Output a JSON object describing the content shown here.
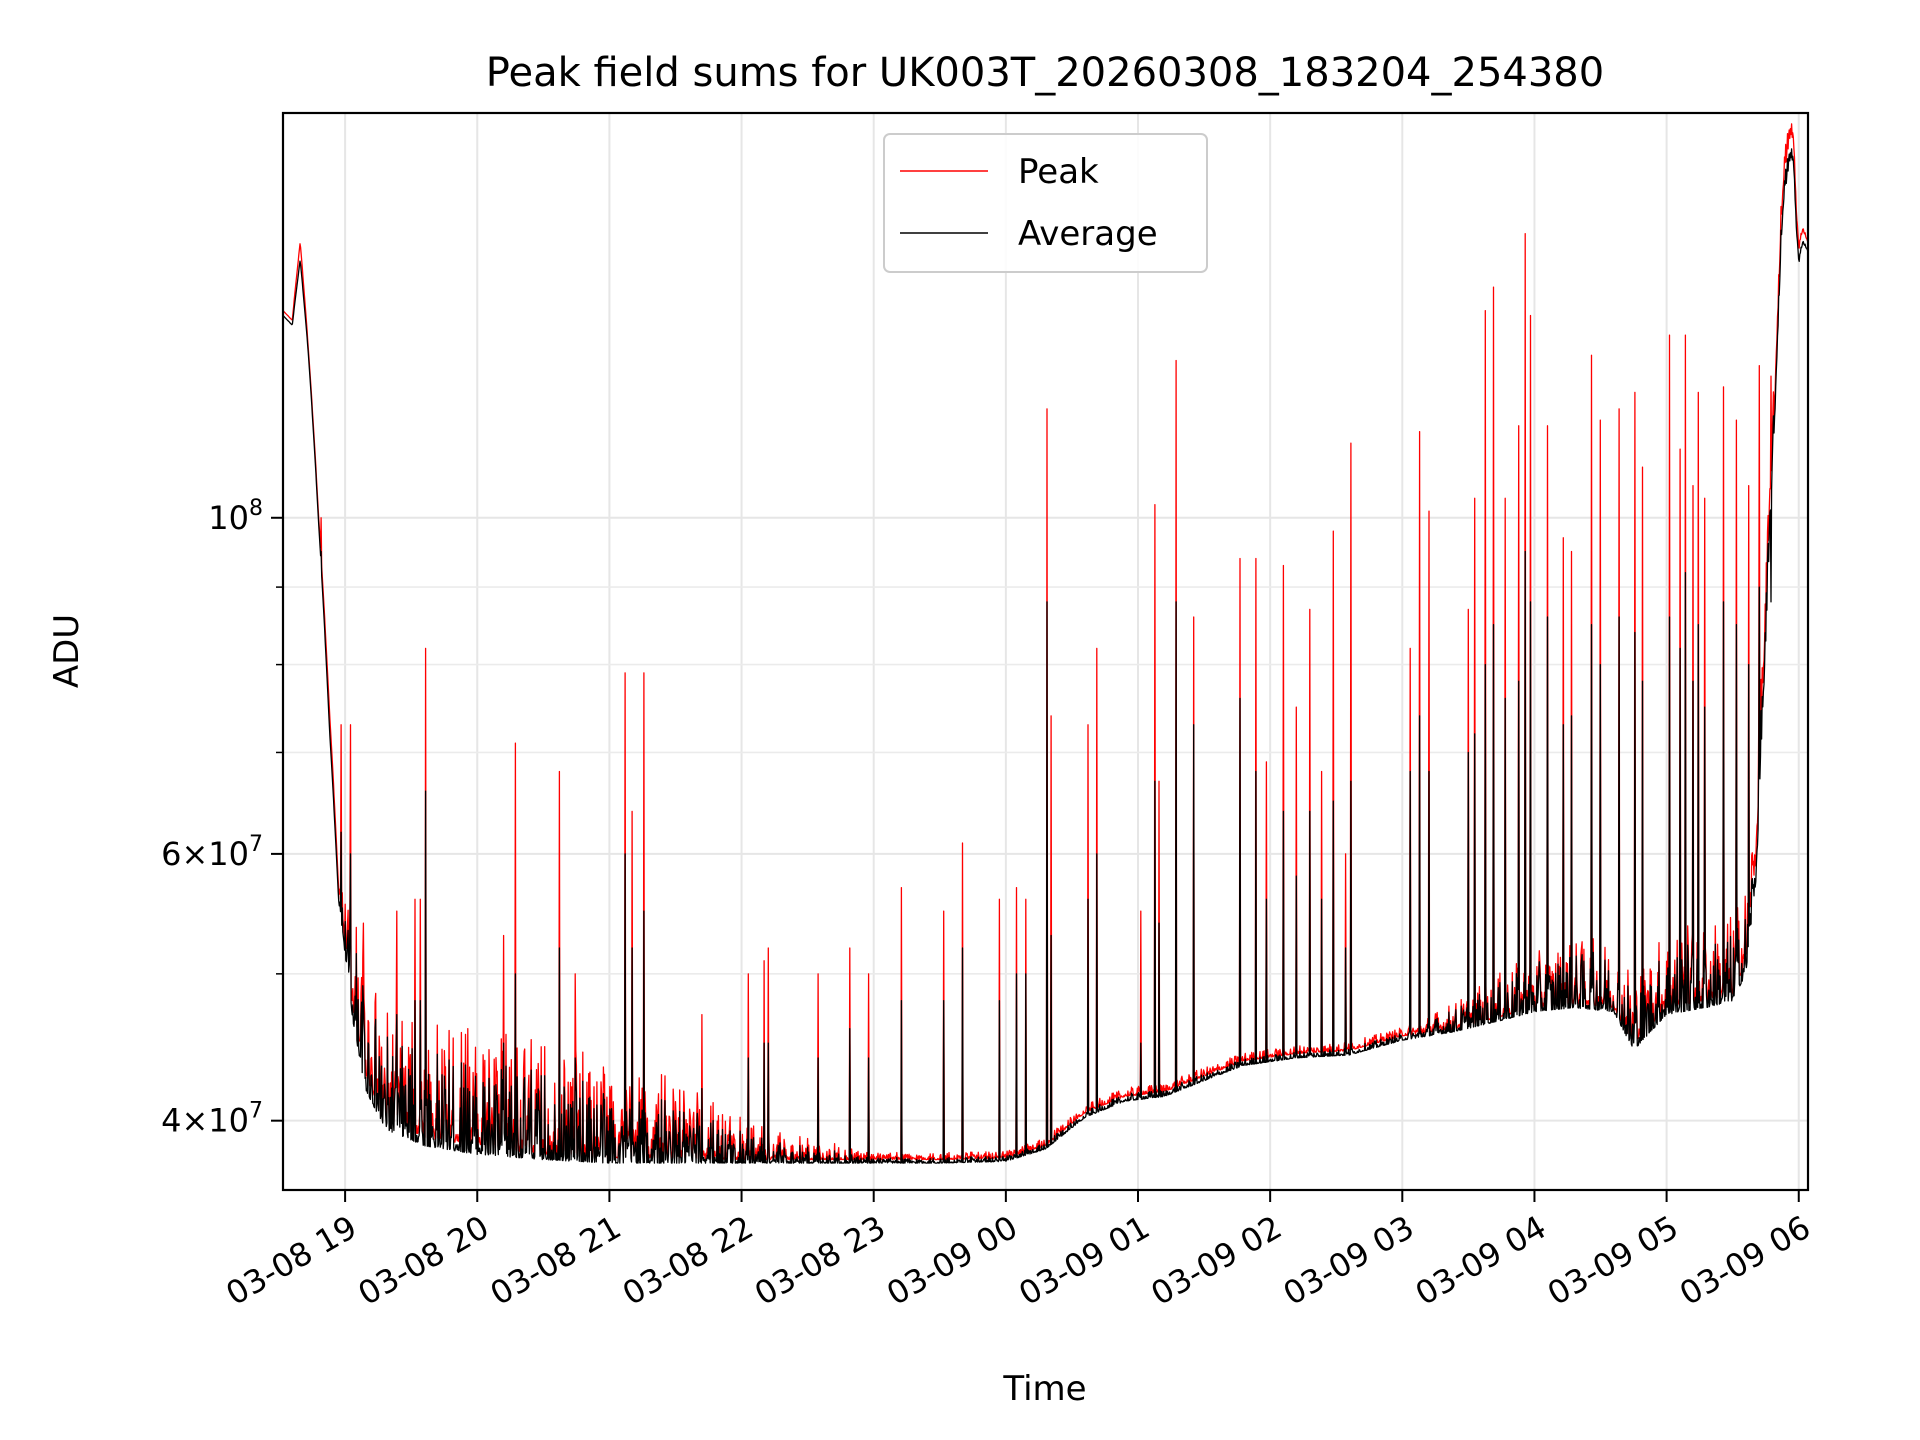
{
  "chart_data": {
    "type": "line",
    "title": "Peak field sums for UK003T_20260308_183204_254380",
    "xlabel": "Time",
    "ylabel": "ADU",
    "yscale": "log",
    "ylim": [
      36000000,
      185000000
    ],
    "xlim_hours": [
      18.53,
      30.07
    ],
    "grid": true,
    "legend_position": "top-center",
    "x_ticks": [
      {
        "hour": 19,
        "label": "03-08 19"
      },
      {
        "hour": 20,
        "label": "03-08 20"
      },
      {
        "hour": 21,
        "label": "03-08 21"
      },
      {
        "hour": 22,
        "label": "03-08 22"
      },
      {
        "hour": 23,
        "label": "03-08 23"
      },
      {
        "hour": 24,
        "label": "03-09 00"
      },
      {
        "hour": 25,
        "label": "03-09 01"
      },
      {
        "hour": 26,
        "label": "03-09 02"
      },
      {
        "hour": 27,
        "label": "03-09 03"
      },
      {
        "hour": 28,
        "label": "03-09 04"
      },
      {
        "hour": 29,
        "label": "03-09 05"
      },
      {
        "hour": 30,
        "label": "03-09 06"
      }
    ],
    "y_major_ticks": [
      {
        "value": 40000000,
        "mant": "4",
        "exp": "7"
      },
      {
        "value": 60000000,
        "mant": "6",
        "exp": "7"
      },
      {
        "value": 100000000,
        "mant": "",
        "exp": "8"
      }
    ],
    "y_minor_ticks": [
      50000000,
      70000000,
      80000000,
      90000000
    ],
    "series": [
      {
        "name": "Peak",
        "color": "#ff0000",
        "baseline": [
          [
            18.53,
            137
          ],
          [
            18.6,
            135
          ],
          [
            18.66,
            152
          ],
          [
            18.72,
            130
          ],
          [
            18.8,
            100
          ],
          [
            18.88,
            75
          ],
          [
            18.95,
            57
          ],
          [
            19.05,
            48
          ],
          [
            19.15,
            43
          ],
          [
            19.3,
            40
          ],
          [
            19.6,
            39
          ],
          [
            20.0,
            38.5
          ],
          [
            20.5,
            38
          ],
          [
            21.0,
            37.8
          ],
          [
            21.5,
            37.8
          ],
          [
            22.0,
            37.7
          ],
          [
            22.5,
            37.7
          ],
          [
            23.0,
            37.7
          ],
          [
            23.5,
            37.7
          ],
          [
            24.0,
            37.8
          ],
          [
            24.3,
            38.5
          ],
          [
            24.6,
            40.5
          ],
          [
            24.9,
            41.5
          ],
          [
            25.2,
            41.8
          ],
          [
            25.5,
            42.8
          ],
          [
            25.8,
            43.8
          ],
          [
            26.2,
            44.3
          ],
          [
            26.6,
            44.5
          ],
          [
            27.0,
            45.5
          ],
          [
            27.4,
            46
          ],
          [
            27.8,
            47
          ],
          [
            28.0,
            47.5
          ],
          [
            28.3,
            47.8
          ],
          [
            28.6,
            47.5
          ],
          [
            28.75,
            45
          ],
          [
            29.0,
            47.5
          ],
          [
            29.3,
            48
          ],
          [
            29.5,
            48.5
          ],
          [
            29.6,
            51
          ],
          [
            29.68,
            60
          ],
          [
            29.75,
            85
          ],
          [
            29.82,
            120
          ],
          [
            29.88,
            165
          ],
          [
            29.93,
            178
          ],
          [
            29.96,
            178
          ],
          [
            29.98,
            160
          ],
          [
            30.0,
            150
          ],
          [
            30.03,
            155
          ],
          [
            30.07,
            152
          ]
        ],
        "noise": [
          [
            18.53,
            0.0
          ],
          [
            18.95,
            0.0
          ],
          [
            19.05,
            0.08
          ],
          [
            20.0,
            0.09
          ],
          [
            21.0,
            0.08
          ],
          [
            22.3,
            0.02
          ],
          [
            23.0,
            0.005
          ],
          [
            23.7,
            0.005
          ],
          [
            24.0,
            0.005
          ],
          [
            25.0,
            0.006
          ],
          [
            27.0,
            0.006
          ],
          [
            28.0,
            0.04
          ],
          [
            29.0,
            0.06
          ],
          [
            29.6,
            0.06
          ],
          [
            29.8,
            0.03
          ],
          [
            30.07,
            0.0
          ]
        ],
        "spikes": [
          [
            18.82,
            100
          ],
          [
            18.97,
            73
          ],
          [
            19.04,
            73
          ],
          [
            19.14,
            54
          ],
          [
            19.39,
            55
          ],
          [
            19.53,
            56
          ],
          [
            19.57,
            56
          ],
          [
            19.61,
            82
          ],
          [
            19.93,
            46
          ],
          [
            20.2,
            53
          ],
          [
            20.29,
            71
          ],
          [
            20.62,
            68
          ],
          [
            20.74,
            50
          ],
          [
            21.12,
            79
          ],
          [
            21.17,
            64
          ],
          [
            21.26,
            79
          ],
          [
            21.7,
            47
          ],
          [
            22.05,
            50
          ],
          [
            22.17,
            51
          ],
          [
            22.2,
            52
          ],
          [
            22.58,
            50
          ],
          [
            22.82,
            52
          ],
          [
            22.96,
            50
          ],
          [
            23.21,
            57
          ],
          [
            23.53,
            55
          ],
          [
            23.67,
            61
          ],
          [
            23.95,
            56
          ],
          [
            24.08,
            57
          ],
          [
            24.15,
            56
          ],
          [
            24.31,
            118
          ],
          [
            24.34,
            74
          ],
          [
            24.62,
            73
          ],
          [
            24.69,
            82
          ],
          [
            25.02,
            55
          ],
          [
            25.13,
            102
          ],
          [
            25.16,
            67
          ],
          [
            25.29,
            127
          ],
          [
            25.42,
            86
          ],
          [
            25.77,
            94
          ],
          [
            25.89,
            94
          ],
          [
            25.97,
            69
          ],
          [
            26.1,
            93
          ],
          [
            26.2,
            75
          ],
          [
            26.3,
            87
          ],
          [
            26.39,
            68
          ],
          [
            26.48,
            98
          ],
          [
            26.57,
            60
          ],
          [
            26.61,
            112
          ],
          [
            27.06,
            82
          ],
          [
            27.13,
            114
          ],
          [
            27.2,
            101
          ],
          [
            27.5,
            87
          ],
          [
            27.55,
            103
          ],
          [
            27.63,
            137
          ],
          [
            27.69,
            142
          ],
          [
            27.78,
            103
          ],
          [
            27.88,
            115
          ],
          [
            27.93,
            154
          ],
          [
            27.97,
            136
          ],
          [
            28.1,
            115
          ],
          [
            28.22,
            97
          ],
          [
            28.28,
            95
          ],
          [
            28.43,
            128
          ],
          [
            28.5,
            116
          ],
          [
            28.64,
            118
          ],
          [
            28.76,
            121
          ],
          [
            28.82,
            108
          ],
          [
            29.02,
            132
          ],
          [
            29.1,
            111
          ],
          [
            29.14,
            132
          ],
          [
            29.2,
            105
          ],
          [
            29.24,
            121
          ],
          [
            29.29,
            103
          ],
          [
            29.43,
            122
          ],
          [
            29.53,
            116
          ],
          [
            29.62,
            105
          ],
          [
            29.7,
            126
          ],
          [
            29.79,
            124
          ]
        ]
      },
      {
        "name": "Average",
        "color": "#000000",
        "baseline": [
          [
            18.53,
            136
          ],
          [
            18.6,
            134
          ],
          [
            18.66,
            148
          ],
          [
            18.72,
            129
          ],
          [
            18.8,
            99
          ],
          [
            18.88,
            73
          ],
          [
            18.95,
            56
          ],
          [
            19.05,
            47
          ],
          [
            19.15,
            42
          ],
          [
            19.3,
            39.5
          ],
          [
            19.6,
            38.5
          ],
          [
            20.0,
            38
          ],
          [
            20.5,
            37.7
          ],
          [
            21.0,
            37.5
          ],
          [
            21.5,
            37.5
          ],
          [
            22.0,
            37.5
          ],
          [
            22.5,
            37.5
          ],
          [
            23.0,
            37.5
          ],
          [
            23.5,
            37.5
          ],
          [
            24.0,
            37.6
          ],
          [
            24.3,
            38.3
          ],
          [
            24.6,
            40.2
          ],
          [
            24.9,
            41.2
          ],
          [
            25.2,
            41.5
          ],
          [
            25.5,
            42.5
          ],
          [
            25.8,
            43.5
          ],
          [
            26.2,
            44
          ],
          [
            26.6,
            44.2
          ],
          [
            27.0,
            45.2
          ],
          [
            27.4,
            45.8
          ],
          [
            27.8,
            46.7
          ],
          [
            28.0,
            47.2
          ],
          [
            28.3,
            47.5
          ],
          [
            28.6,
            47.2
          ],
          [
            28.75,
            44.5
          ],
          [
            29.0,
            47
          ],
          [
            29.3,
            47.5
          ],
          [
            29.5,
            48
          ],
          [
            29.6,
            50
          ],
          [
            29.68,
            58
          ],
          [
            29.75,
            82
          ],
          [
            29.82,
            117
          ],
          [
            29.88,
            160
          ],
          [
            29.93,
            172
          ],
          [
            29.96,
            172
          ],
          [
            29.98,
            156
          ],
          [
            30.0,
            147
          ],
          [
            30.03,
            152
          ],
          [
            30.07,
            150
          ]
        ],
        "noise": [
          [
            18.53,
            0.0
          ],
          [
            18.95,
            0.0
          ],
          [
            19.05,
            0.07
          ],
          [
            20.0,
            0.07
          ],
          [
            21.0,
            0.06
          ],
          [
            22.3,
            0.015
          ],
          [
            23.0,
            0.004
          ],
          [
            23.7,
            0.004
          ],
          [
            24.0,
            0.004
          ],
          [
            25.0,
            0.005
          ],
          [
            27.0,
            0.005
          ],
          [
            28.0,
            0.035
          ],
          [
            29.0,
            0.05
          ],
          [
            29.6,
            0.05
          ],
          [
            29.8,
            0.025
          ],
          [
            30.07,
            0.0
          ]
        ],
        "spikes": [
          [
            18.82,
            95
          ],
          [
            18.97,
            62
          ],
          [
            19.04,
            60
          ],
          [
            19.14,
            48
          ],
          [
            19.39,
            47
          ],
          [
            19.53,
            48
          ],
          [
            19.57,
            48
          ],
          [
            19.61,
            66
          ],
          [
            19.93,
            42
          ],
          [
            20.2,
            45
          ],
          [
            20.29,
            50
          ],
          [
            20.62,
            52
          ],
          [
            20.74,
            44
          ],
          [
            21.12,
            60
          ],
          [
            21.17,
            52
          ],
          [
            21.26,
            55
          ],
          [
            21.7,
            42
          ],
          [
            22.05,
            44
          ],
          [
            22.17,
            45
          ],
          [
            22.2,
            45
          ],
          [
            22.58,
            44
          ],
          [
            22.82,
            46
          ],
          [
            22.96,
            44
          ],
          [
            23.21,
            48
          ],
          [
            23.53,
            48
          ],
          [
            23.67,
            52
          ],
          [
            23.95,
            48
          ],
          [
            24.08,
            50
          ],
          [
            24.15,
            50
          ],
          [
            24.31,
            88
          ],
          [
            24.34,
            53
          ],
          [
            24.62,
            56
          ],
          [
            24.69,
            60
          ],
          [
            25.02,
            45
          ],
          [
            25.13,
            67
          ],
          [
            25.16,
            54
          ],
          [
            25.29,
            88
          ],
          [
            25.42,
            73
          ],
          [
            25.77,
            76
          ],
          [
            25.89,
            68
          ],
          [
            25.97,
            56
          ],
          [
            26.1,
            64
          ],
          [
            26.2,
            58
          ],
          [
            26.3,
            64
          ],
          [
            26.39,
            56
          ],
          [
            26.48,
            65
          ],
          [
            26.57,
            52
          ],
          [
            26.61,
            67
          ],
          [
            27.06,
            68
          ],
          [
            27.13,
            74
          ],
          [
            27.2,
            68
          ],
          [
            27.5,
            70
          ],
          [
            27.55,
            72
          ],
          [
            27.63,
            80
          ],
          [
            27.69,
            85
          ],
          [
            27.78,
            76
          ],
          [
            27.88,
            78
          ],
          [
            27.93,
            95
          ],
          [
            27.97,
            88
          ],
          [
            28.1,
            86
          ],
          [
            28.22,
            73
          ],
          [
            28.28,
            74
          ],
          [
            28.43,
            85
          ],
          [
            28.5,
            80
          ],
          [
            28.64,
            86
          ],
          [
            28.76,
            84
          ],
          [
            28.82,
            78
          ],
          [
            29.02,
            86
          ],
          [
            29.1,
            82
          ],
          [
            29.14,
            92
          ],
          [
            29.2,
            78
          ],
          [
            29.24,
            85
          ],
          [
            29.29,
            75
          ],
          [
            29.43,
            88
          ],
          [
            29.53,
            85
          ],
          [
            29.62,
            80
          ],
          [
            29.7,
            90
          ],
          [
            29.79,
            88
          ]
        ]
      }
    ]
  },
  "legend": {
    "items": [
      {
        "label": "Peak",
        "color": "#ff0000"
      },
      {
        "label": "Average",
        "color": "#000000"
      }
    ]
  }
}
